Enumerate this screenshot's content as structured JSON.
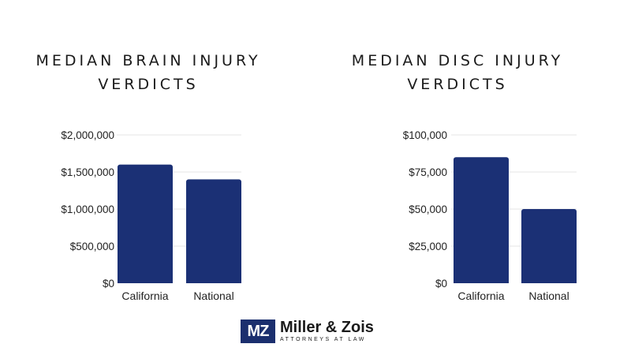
{
  "colors": {
    "bar": "#1b3075",
    "grid": "#e6e6e6",
    "text": "#222222"
  },
  "logo": {
    "mark": "MZ",
    "name": "Miller & Zois",
    "tagline": "ATTORNEYS AT LAW"
  },
  "chart_data": [
    {
      "type": "bar",
      "title": "MEDIAN BRAIN INJURY VERDICTS",
      "title_lines": [
        "MEDIAN BRAIN INJURY",
        "VERDICTS"
      ],
      "categories": [
        "California",
        "National"
      ],
      "values": [
        1600000,
        1400000
      ],
      "ylim": [
        0,
        2000000
      ],
      "yticks": [
        0,
        500000,
        1000000,
        1500000,
        2000000
      ],
      "ytick_labels": [
        "$0",
        "$500,000",
        "$1,000,000",
        "$1,500,000",
        "$2,000,000"
      ],
      "xlabel": "",
      "ylabel": "",
      "grid": true
    },
    {
      "type": "bar",
      "title": "MEDIAN DISC INJURY VERDICTS",
      "title_lines": [
        "MEDIAN DISC INJURY",
        "VERDICTS"
      ],
      "categories": [
        "California",
        "National"
      ],
      "values": [
        85000,
        50000
      ],
      "ylim": [
        0,
        100000
      ],
      "yticks": [
        0,
        25000,
        50000,
        75000,
        100000
      ],
      "ytick_labels": [
        "$0",
        "$25,000",
        "$50,000",
        "$75,000",
        "$100,000"
      ],
      "xlabel": "",
      "ylabel": "",
      "grid": true
    }
  ]
}
